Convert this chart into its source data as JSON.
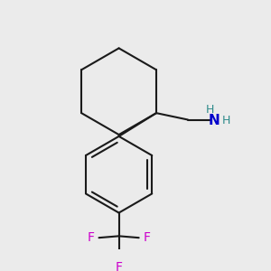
{
  "background_color": "#ebebeb",
  "bond_color": "#1a1a1a",
  "bond_width": 1.5,
  "atom_colors": {
    "N": "#0000cc",
    "H_on_N": "#2e8b8b",
    "F": "#cc00cc"
  },
  "figsize": [
    3.0,
    3.0
  ],
  "dpi": 100,
  "xlim": [
    0,
    300
  ],
  "ylim": [
    0,
    300
  ]
}
